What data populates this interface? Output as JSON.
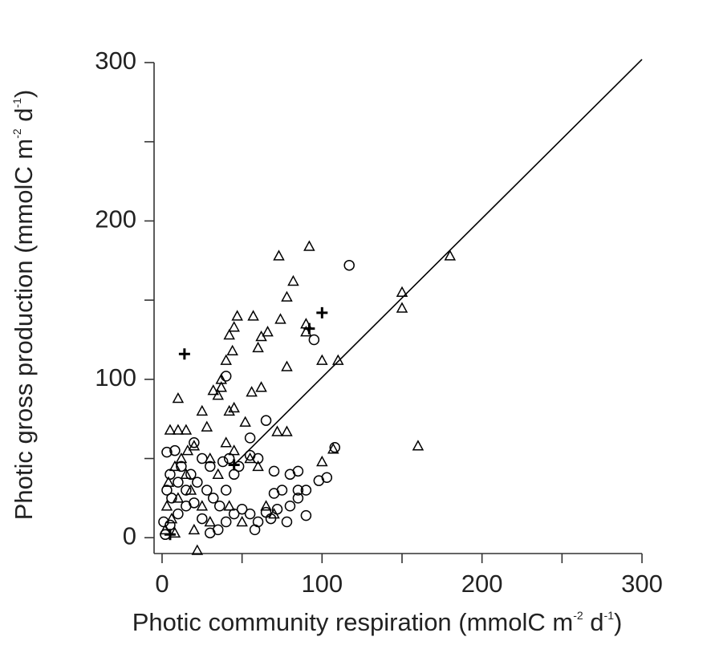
{
  "chart_data": {
    "type": "scatter",
    "x_label": [
      "Photic community respiration (mmolC m",
      "-2",
      " d",
      "-1",
      ")"
    ],
    "y_label": [
      "Photic gross production (mmolC m",
      "-2",
      " d",
      "-1",
      ")"
    ],
    "xlim": [
      -5,
      300
    ],
    "ylim": [
      -10,
      300
    ],
    "xticks": [
      0,
      100,
      200,
      300
    ],
    "yticks": [
      0,
      100,
      200,
      300
    ],
    "xminor_ticks": [
      50,
      150,
      250
    ],
    "yminor_ticks": [
      50,
      150,
      250
    ],
    "series": [
      {
        "marker": "triangle",
        "color": "#000000",
        "x": [
          10,
          22,
          73,
          92,
          180,
          150,
          150,
          160,
          100,
          110,
          100,
          82,
          78,
          78,
          57,
          47,
          42,
          45,
          44,
          60,
          62,
          66,
          74,
          62,
          56,
          52,
          72,
          78,
          40,
          37,
          37,
          35,
          32,
          42,
          45,
          25,
          28,
          15,
          10,
          5,
          20,
          16,
          12,
          8,
          4,
          3,
          6,
          2,
          10,
          15,
          18,
          25,
          30,
          35,
          40,
          45,
          55,
          60,
          65,
          70,
          50,
          42,
          30,
          20,
          8,
          107,
          90,
          90
        ],
        "values": [
          88,
          -8,
          178,
          184,
          178,
          155,
          145,
          58,
          112,
          112,
          48,
          162,
          152,
          108,
          140,
          140,
          128,
          133,
          118,
          120,
          127,
          130,
          138,
          95,
          92,
          73,
          67,
          67,
          112,
          100,
          95,
          90,
          93,
          80,
          82,
          80,
          70,
          68,
          68,
          68,
          58,
          55,
          50,
          45,
          35,
          20,
          12,
          5,
          25,
          40,
          30,
          20,
          50,
          40,
          60,
          55,
          50,
          45,
          20,
          15,
          10,
          20,
          10,
          5,
          3,
          56,
          130,
          135
        ]
      },
      {
        "marker": "circle",
        "color": "#000000",
        "x": [
          117,
          95,
          40,
          55,
          65,
          55,
          60,
          70,
          80,
          85,
          75,
          70,
          80,
          85,
          90,
          98,
          103,
          108,
          90,
          78,
          60,
          55,
          50,
          45,
          40,
          35,
          30,
          25,
          20,
          15,
          10,
          5,
          3,
          8,
          12,
          18,
          22,
          28,
          32,
          36,
          40,
          45,
          48,
          42,
          38,
          30,
          25,
          20,
          15,
          10,
          5,
          2,
          1,
          3,
          6,
          65,
          68,
          72,
          58,
          85
        ],
        "values": [
          172,
          125,
          102,
          63,
          74,
          52,
          50,
          42,
          40,
          42,
          30,
          28,
          20,
          25,
          30,
          36,
          38,
          57,
          14,
          10,
          10,
          15,
          18,
          15,
          10,
          5,
          3,
          12,
          22,
          30,
          35,
          40,
          54,
          55,
          45,
          40,
          35,
          30,
          25,
          20,
          30,
          40,
          45,
          50,
          48,
          45,
          50,
          60,
          20,
          15,
          8,
          2,
          10,
          30,
          25,
          16,
          12,
          18,
          5,
          30
        ]
      },
      {
        "marker": "plus",
        "color": "#000000",
        "x": [
          14,
          100,
          92,
          45,
          5
        ],
        "values": [
          116,
          142,
          132,
          46,
          2
        ]
      },
      {
        "marker": "line",
        "color": "#000000",
        "x": [
          45,
          300
        ],
        "values": [
          46,
          302
        ]
      }
    ]
  }
}
